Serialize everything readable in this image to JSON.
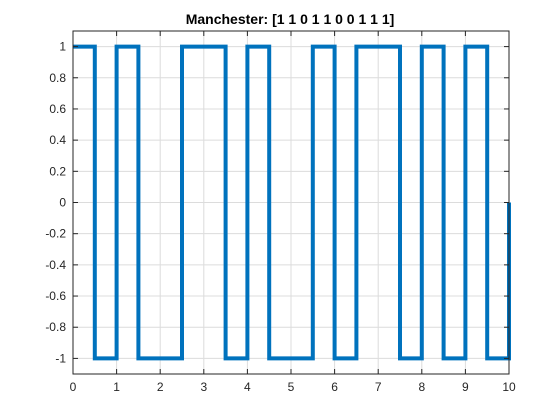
{
  "chart_data": {
    "type": "line",
    "title": "Manchester: [1  1  0  1  1  0  0  1  1  1]",
    "xlabel": "",
    "ylabel": "",
    "xlim": [
      0,
      10
    ],
    "ylim": [
      -1.1,
      1.1
    ],
    "x_ticks": [
      0,
      1,
      2,
      3,
      4,
      5,
      6,
      7,
      8,
      9,
      10
    ],
    "y_ticks": [
      1,
      0.8,
      0.6,
      0.4,
      0.2,
      0,
      -0.2,
      -0.4,
      -0.6,
      -0.8,
      -1
    ],
    "grid": true,
    "series": [
      {
        "color": "#0072BD",
        "x": [
          0,
          0.5,
          0.5,
          1,
          1,
          1.5,
          1.5,
          2.5,
          2.5,
          3.5,
          3.5,
          4,
          4,
          4.5,
          4.5,
          5.5,
          5.5,
          6,
          6,
          6.5,
          6.5,
          7.5,
          7.5,
          8,
          8,
          8.5,
          8.5,
          9,
          9,
          9.5,
          9.5,
          10,
          10
        ],
        "y": [
          1,
          1,
          -1,
          -1,
          1,
          1,
          -1,
          -1,
          1,
          1,
          -1,
          -1,
          1,
          1,
          -1,
          -1,
          1,
          1,
          -1,
          -1,
          1,
          1,
          -1,
          -1,
          1,
          1,
          -1,
          -1,
          1,
          1,
          -1,
          -1,
          0
        ]
      }
    ]
  }
}
